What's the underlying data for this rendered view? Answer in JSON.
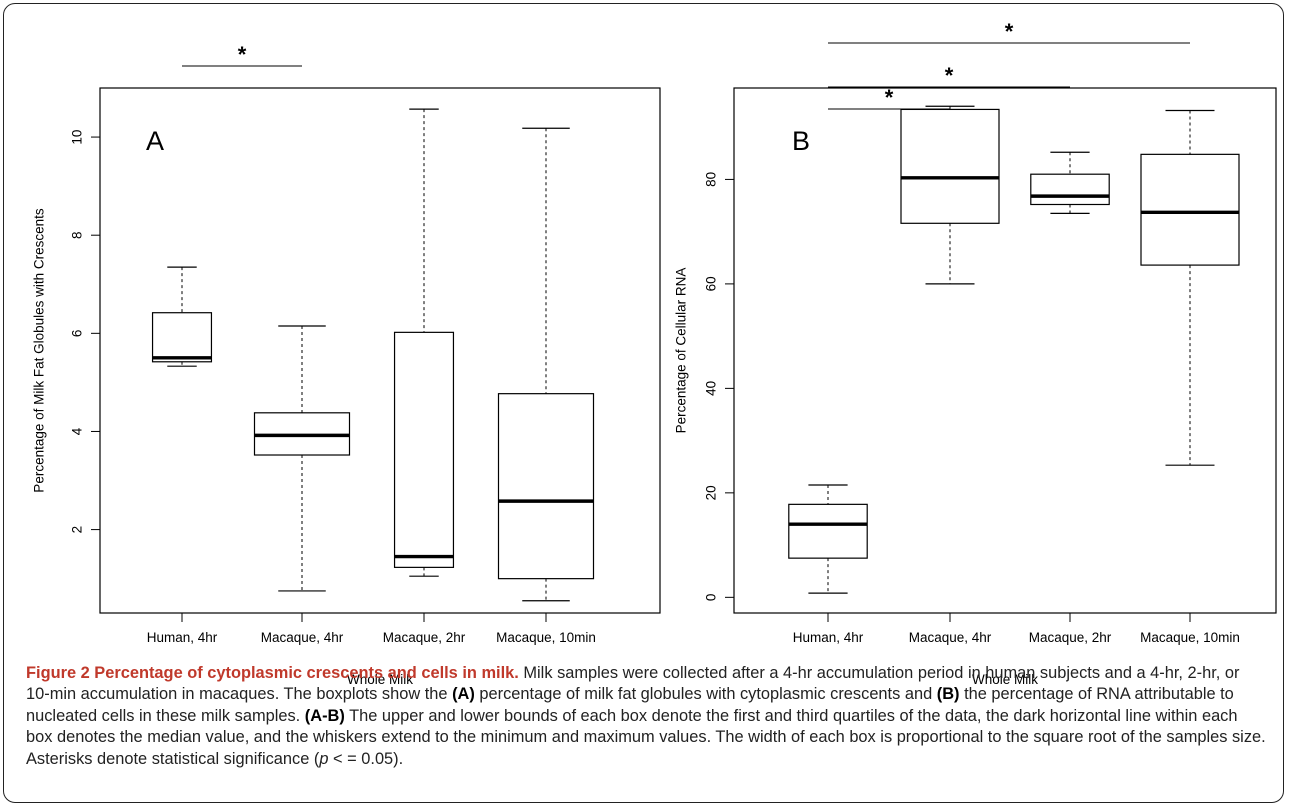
{
  "caption": {
    "title": "Figure 2 Percentage of cytoplasmic crescents and cells in milk.",
    "s1": " Milk samples were collected after a 4-hr accumulation period in human subjects and a 4-hr, 2-hr, or 10-min accumulation in macaques. The boxplots show the ",
    "refA": "(A)",
    "s2": " percentage of milk fat globules with cytoplasmic crescents and ",
    "refB": "(B)",
    "s3": " the percentage of RNA attributable to nucleated cells in these milk samples. ",
    "refAB": "(A-B)",
    "s4": " The upper and lower bounds of each box denote the first and third quartiles of the data, the dark horizontal line within each box denotes the median value, and the whiskers extend to the minimum and maximum values. The width of each box is proportional to the square root of the samples size. Asterisks denote statistical significance (",
    "p": "p",
    "s5": " < = 0.05)."
  },
  "chart_data": [
    {
      "type": "boxplot",
      "panel": "A",
      "title": "",
      "xlabel": "Whole Milk",
      "ylabel": "Percentage of Milk Fat Globules with Crescents",
      "categories": [
        "Human, 4hr",
        "Macaque, 4hr",
        "Macaque, 2hr",
        "Macaque, 10min"
      ],
      "ylim": [
        0.3,
        11.0
      ],
      "yticks": [
        2,
        4,
        6,
        8,
        10
      ],
      "boxes": [
        {
          "min": 5.33,
          "q1": 5.42,
          "median": 5.5,
          "q3": 6.42,
          "max": 7.35,
          "relwidth": 0.62
        },
        {
          "min": 0.75,
          "q1": 3.52,
          "median": 3.92,
          "q3": 4.38,
          "max": 6.15,
          "relwidth": 1.0
        },
        {
          "min": 1.05,
          "q1": 1.23,
          "median": 1.45,
          "q3": 6.02,
          "max": 10.57,
          "relwidth": 0.62
        },
        {
          "min": 0.55,
          "q1": 1.0,
          "median": 2.58,
          "q3": 4.77,
          "max": 10.18,
          "relwidth": 1.0
        }
      ],
      "significance": [
        {
          "from": 0,
          "to": 1,
          "label": "*"
        }
      ]
    },
    {
      "type": "boxplot",
      "panel": "B",
      "title": "",
      "xlabel": "Whole Milk",
      "ylabel": "Percentage of Cellular RNA",
      "categories": [
        "Human, 4hr",
        "Macaque, 4hr",
        "Macaque, 2hr",
        "Macaque, 10min"
      ],
      "ylim": [
        -3.0,
        97.5
      ],
      "yticks": [
        0,
        20,
        40,
        60,
        80
      ],
      "boxes": [
        {
          "min": 0.8,
          "q1": 7.5,
          "median": 14.0,
          "q3": 17.8,
          "max": 21.5,
          "relwidth": 0.8
        },
        {
          "min": 60.0,
          "q1": 71.6,
          "median": 80.3,
          "q3": 93.4,
          "max": 94.0,
          "relwidth": 1.0
        },
        {
          "min": 73.5,
          "q1": 75.2,
          "median": 76.8,
          "q3": 81.0,
          "max": 85.2,
          "relwidth": 0.8
        },
        {
          "min": 25.3,
          "q1": 63.6,
          "median": 73.7,
          "q3": 84.8,
          "max": 93.2,
          "relwidth": 1.0
        }
      ],
      "significance": [
        {
          "from": 0,
          "to": 1,
          "label": "*"
        },
        {
          "from": 0,
          "to": 2,
          "label": "*"
        },
        {
          "from": 0,
          "to": 3,
          "label": "*"
        }
      ]
    }
  ]
}
